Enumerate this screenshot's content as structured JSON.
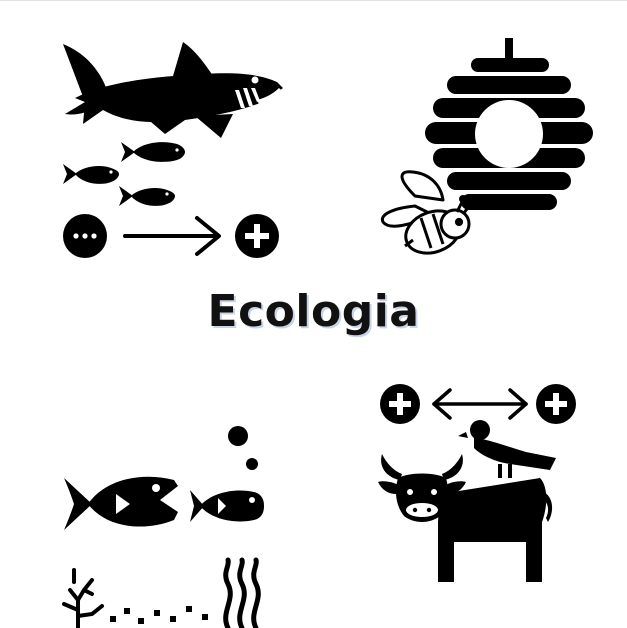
{
  "title": "Ecologia",
  "colors": {
    "ink": "#000000",
    "background": "#ffffff",
    "title_shadow": "#c9d4e8"
  },
  "icons": {
    "predation": [
      "shark-icon",
      "small-fish-icon",
      "minus-circle-icon",
      "arrow-right-icon",
      "plus-circle-icon"
    ],
    "mutualism": [
      "beehive-icon",
      "bee-icon"
    ],
    "commensalism": [
      "plus-circle-icon",
      "double-arrow-icon",
      "cow-icon",
      "bird-icon"
    ],
    "aquatic": [
      "big-fish-icon",
      "small-fish-icon",
      "bubbles-icon",
      "coral-icon",
      "seaweed-icon"
    ]
  }
}
